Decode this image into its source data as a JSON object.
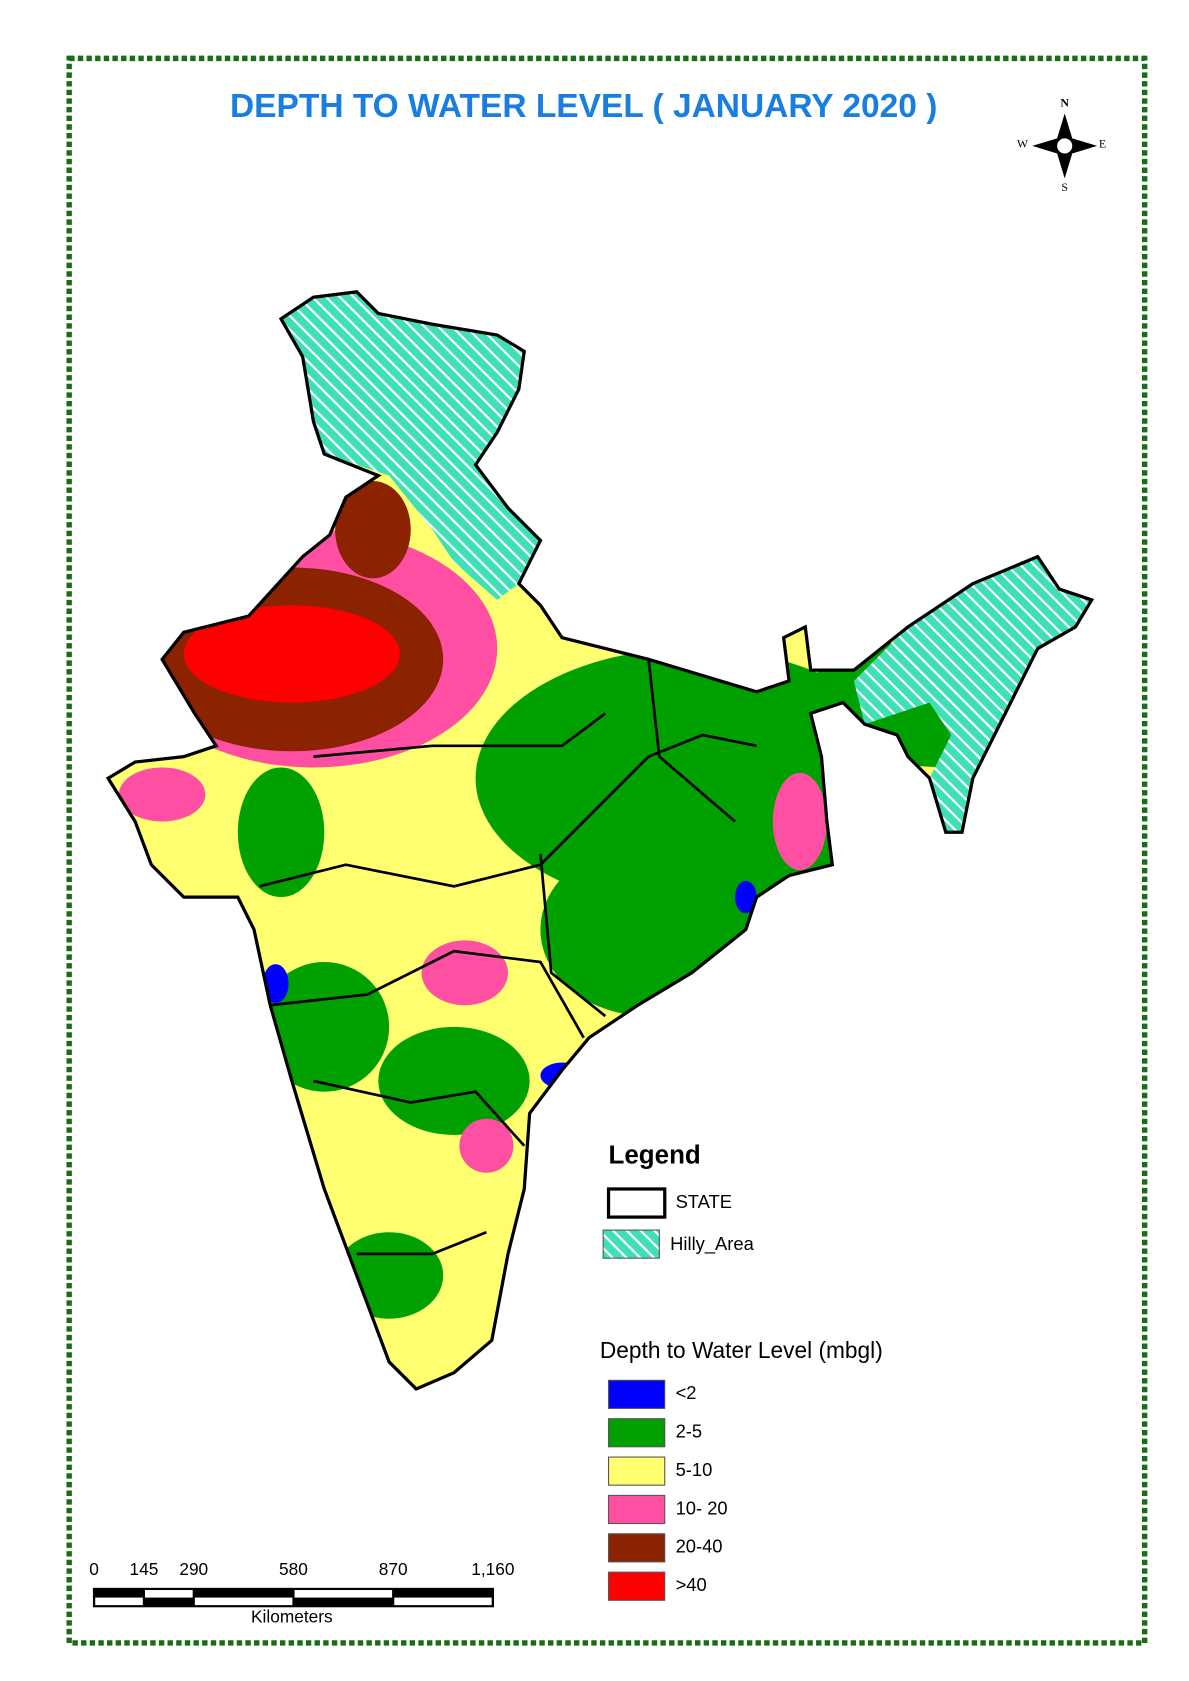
{
  "title": "DEPTH TO WATER LEVEL ( JANUARY 2020 )",
  "compass": {
    "north": "N",
    "south": "S",
    "east": "E",
    "west": "W"
  },
  "legend": {
    "title": "Legend",
    "items": [
      {
        "label": "STATE"
      },
      {
        "label": "Hilly_Area"
      }
    ]
  },
  "classification": {
    "title": "Depth to Water Level (mbgl)",
    "classes": [
      {
        "label": "<2",
        "color": "#0000ff"
      },
      {
        "label": "2-5",
        "color": "#00a000"
      },
      {
        "label": "5-10",
        "color": "#ffff70"
      },
      {
        "label": "10- 20",
        "color": "#ff4fa3"
      },
      {
        "label": "20-40",
        "color": "#8b2300"
      },
      {
        "label": ">40",
        "color": "#ff0000"
      }
    ]
  },
  "scale_bar": {
    "ticks": [
      0,
      145,
      290,
      580,
      870,
      {
        "value": 1160,
        "label": "1,160"
      }
    ],
    "unit": "Kilometers"
  }
}
